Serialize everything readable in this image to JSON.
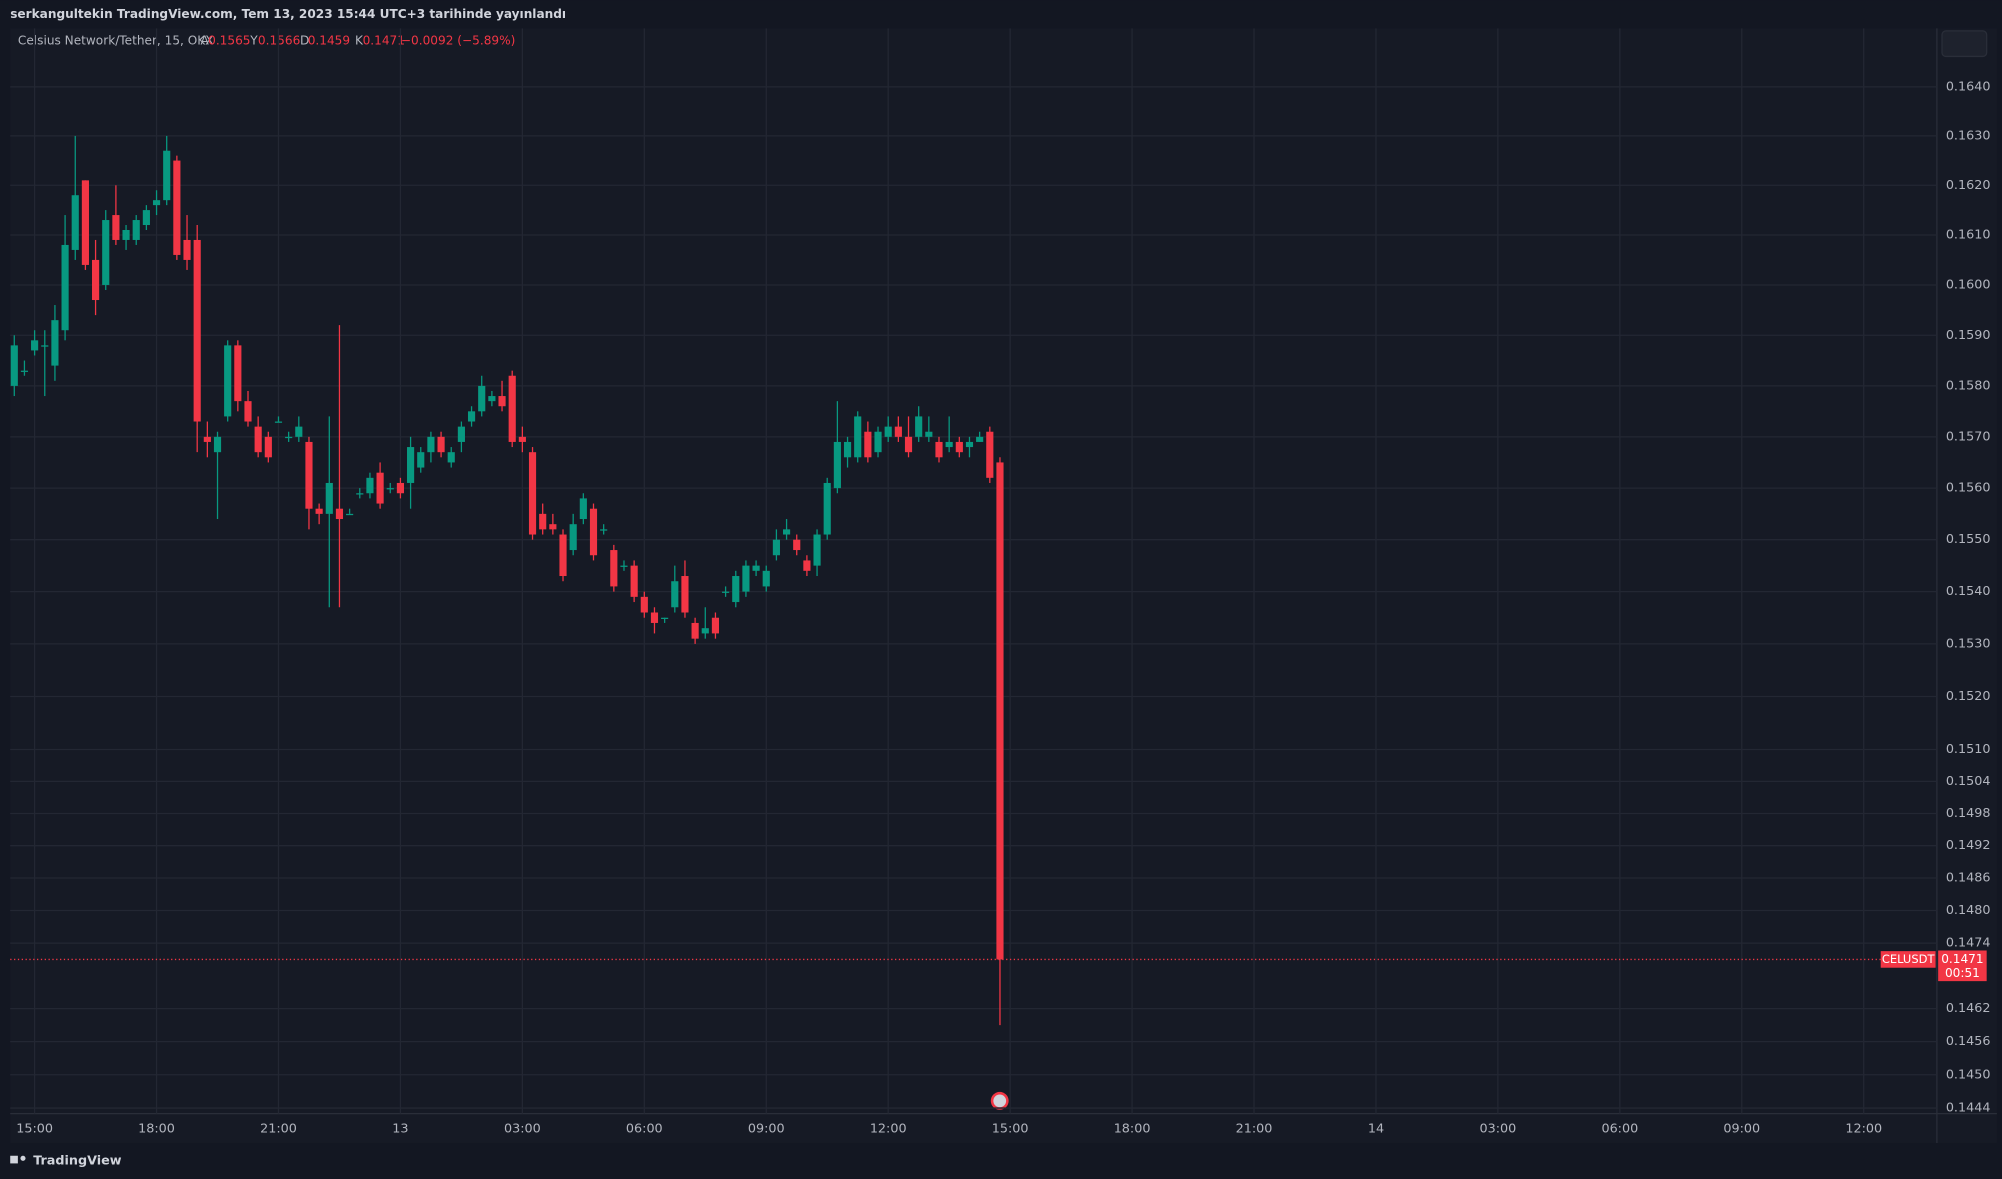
{
  "header": "serkangultekin TradingView.com, Tem 13, 2023 15:44 UTC+3 tarihinde yayınlandı",
  "footer": "TradingView",
  "chart_data": {
    "type": "candlestick",
    "title": "Celsius Network/Tether, 15, OKX",
    "ohlc_labels": [
      "A",
      "Y",
      "D",
      "K"
    ],
    "change_label": "−0.0092 (−5.89%)",
    "symbol": "CELUSDT",
    "countdown": "00:51",
    "up_color": "#089981",
    "down_color": "#f23645",
    "log_scale": true,
    "grid": true,
    "xlim": [
      14.4,
      61.8
    ],
    "xticks": [
      {
        "value": 15,
        "label": "15:00"
      },
      {
        "value": 18,
        "label": "18:00"
      },
      {
        "value": 21,
        "label": "21:00"
      },
      {
        "value": 24,
        "label": "13"
      },
      {
        "value": 27,
        "label": "03:00"
      },
      {
        "value": 30,
        "label": "06:00"
      },
      {
        "value": 33,
        "label": "09:00"
      },
      {
        "value": 36,
        "label": "12:00"
      },
      {
        "value": 39,
        "label": "15:00"
      },
      {
        "value": 42,
        "label": "18:00"
      },
      {
        "value": 45,
        "label": "21:00"
      },
      {
        "value": 48,
        "label": "14"
      },
      {
        "value": 51,
        "label": "03:00"
      },
      {
        "value": 54,
        "label": "06:00"
      },
      {
        "value": 57,
        "label": "09:00"
      },
      {
        "value": 60,
        "label": "12:00"
      }
    ],
    "ylim": [
      0.1443,
      0.1652
    ],
    "yticks": [
      {
        "value": 0.164,
        "label": "0.1640"
      },
      {
        "value": 0.163,
        "label": "0.1630"
      },
      {
        "value": 0.162,
        "label": "0.1620"
      },
      {
        "value": 0.161,
        "label": "0.1610"
      },
      {
        "value": 0.16,
        "label": "0.1600"
      },
      {
        "value": 0.159,
        "label": "0.1590"
      },
      {
        "value": 0.158,
        "label": "0.1580"
      },
      {
        "value": 0.157,
        "label": "0.1570"
      },
      {
        "value": 0.156,
        "label": "0.1560"
      },
      {
        "value": 0.155,
        "label": "0.1550"
      },
      {
        "value": 0.154,
        "label": "0.1540"
      },
      {
        "value": 0.153,
        "label": "0.1530"
      },
      {
        "value": 0.152,
        "label": "0.1520"
      },
      {
        "value": 0.151,
        "label": "0.1510"
      },
      0.1504,
      0.1498,
      0.1492,
      0.1486,
      {
        "value": 0.148,
        "label": "0.1480"
      },
      0.1474,
      0.1462,
      0.1456,
      {
        "value": 0.145,
        "label": "0.1450"
      },
      0.1444
    ],
    "x": [
      14.5,
      14.75,
      15,
      15.25,
      15.5,
      15.75,
      16,
      16.25,
      16.5,
      16.75,
      17,
      17.25,
      17.5,
      17.75,
      18,
      18.25,
      18.5,
      18.75,
      19,
      19.25,
      19.5,
      19.75,
      20,
      20.25,
      20.5,
      20.75,
      21,
      21.25,
      21.5,
      21.75,
      22,
      22.25,
      22.5,
      22.75,
      23,
      23.25,
      23.5,
      23.75,
      24,
      24.25,
      24.5,
      24.75,
      25,
      25.25,
      25.5,
      25.75,
      26,
      26.25,
      26.5,
      26.75,
      27,
      27.25,
      27.5,
      27.75,
      28,
      28.25,
      28.5,
      28.75,
      29,
      29.25,
      29.5,
      29.75,
      30,
      30.25,
      30.5,
      30.75,
      31,
      31.25,
      31.5,
      31.75,
      32,
      32.25,
      32.5,
      32.75,
      33,
      33.25,
      33.5,
      33.75,
      34,
      34.25,
      34.5,
      34.75,
      35,
      35.25,
      35.5,
      35.75,
      36,
      36.25,
      36.5,
      36.75,
      37,
      37.25,
      37.5,
      37.75,
      38,
      38.25,
      38.5,
      38.75
    ],
    "open": [
      0.158,
      0.1583,
      0.1587,
      0.1588,
      0.1584,
      0.1591,
      0.1607,
      0.1621,
      0.1605,
      0.16,
      0.1614,
      0.1609,
      0.1609,
      0.1612,
      0.1616,
      0.1617,
      0.1625,
      0.1609,
      0.1609,
      0.157,
      0.1567,
      0.1574,
      0.1588,
      0.1577,
      0.1572,
      0.157,
      0.1573,
      0.157,
      0.157,
      0.1569,
      0.1556,
      0.1555,
      0.1556,
      0.1555,
      0.1559,
      0.1559,
      0.1563,
      0.156,
      0.1561,
      0.1561,
      0.1564,
      0.1567,
      0.157,
      0.1565,
      0.1569,
      0.1573,
      0.1575,
      0.1577,
      0.1578,
      0.1582,
      0.157,
      0.1567,
      0.1555,
      0.1553,
      0.1551,
      0.1548,
      0.1554,
      0.1556,
      0.1552,
      0.1548,
      0.1545,
      0.1545,
      0.1539,
      0.1536,
      0.1535,
      0.1537,
      0.1543,
      0.1534,
      0.1532,
      0.1535,
      0.154,
      0.1538,
      0.154,
      0.1544,
      0.1541,
      0.1547,
      0.1551,
      0.155,
      0.1546,
      0.1545,
      0.1551,
      0.156,
      0.1566,
      0.1566,
      0.1571,
      0.1567,
      0.157,
      0.1572,
      0.157,
      0.157,
      0.157,
      0.1569,
      0.1568,
      0.1569,
      0.1568,
      0.1569,
      0.1571,
      0.1565
    ],
    "high": [
      0.159,
      0.1585,
      0.1591,
      0.1591,
      0.1596,
      0.1614,
      0.163,
      0.1621,
      0.1609,
      0.1615,
      0.162,
      0.1612,
      0.1614,
      0.1616,
      0.1619,
      0.163,
      0.1626,
      0.1614,
      0.1612,
      0.1573,
      0.1571,
      0.1589,
      0.1589,
      0.1579,
      0.1574,
      0.1571,
      0.1574,
      0.1571,
      0.1574,
      0.157,
      0.1557,
      0.1574,
      0.1592,
      0.1556,
      0.156,
      0.1563,
      0.1565,
      0.1561,
      0.1562,
      0.157,
      0.1568,
      0.1571,
      0.1571,
      0.1568,
      0.1573,
      0.1576,
      0.1582,
      0.1579,
      0.1581,
      0.1583,
      0.1572,
      0.1568,
      0.1557,
      0.1555,
      0.1552,
      0.1555,
      0.1559,
      0.1557,
      0.1553,
      0.1549,
      0.1546,
      0.1546,
      0.154,
      0.1537,
      0.1535,
      0.1545,
      0.1546,
      0.1535,
      0.1537,
      0.1536,
      0.1541,
      0.1544,
      0.1546,
      0.1546,
      0.1545,
      0.1552,
      0.1554,
      0.1551,
      0.1547,
      0.1552,
      0.1562,
      0.1577,
      0.157,
      0.1575,
      0.1573,
      0.1572,
      0.1574,
      0.1574,
      0.1574,
      0.1576,
      0.1574,
      0.157,
      0.1574,
      0.157,
      0.157,
      0.1571,
      0.1572,
      0.1566
    ],
    "low": [
      0.1578,
      0.1582,
      0.1586,
      0.1578,
      0.1581,
      0.1589,
      0.1605,
      0.1603,
      0.1594,
      0.1599,
      0.1608,
      0.1607,
      0.1608,
      0.1611,
      0.1614,
      0.1616,
      0.1605,
      0.1603,
      0.1567,
      0.1566,
      0.1554,
      0.1573,
      0.1575,
      0.1572,
      0.1566,
      0.1565,
      0.1573,
      0.1569,
      0.1569,
      0.1552,
      0.1553,
      0.1537,
      0.1537,
      0.1555,
      0.1558,
      0.1558,
      0.1556,
      0.1559,
      0.1558,
      0.1556,
      0.1563,
      0.1565,
      0.1566,
      0.1564,
      0.1567,
      0.1572,
      0.1574,
      0.1576,
      0.1575,
      0.1568,
      0.1567,
      0.155,
      0.1551,
      0.1551,
      0.1542,
      0.1547,
      0.1553,
      0.1546,
      0.1551,
      0.154,
      0.1544,
      0.1538,
      0.1535,
      0.1532,
      0.1534,
      0.1536,
      0.1535,
      0.153,
      0.1531,
      0.1531,
      0.1539,
      0.1537,
      0.1539,
      0.1543,
      0.154,
      0.1546,
      0.155,
      0.1547,
      0.1543,
      0.1543,
      0.155,
      0.1559,
      0.1564,
      0.1565,
      0.1565,
      0.1566,
      0.1569,
      0.1569,
      0.1566,
      0.1569,
      0.1569,
      0.1565,
      0.1567,
      0.1566,
      0.1566,
      0.1569,
      0.1561,
      0.1459
    ],
    "close": [
      0.1588,
      0.1583,
      0.1589,
      0.1588,
      0.1593,
      0.1608,
      0.1618,
      0.1604,
      0.1597,
      0.1613,
      0.1609,
      0.1611,
      0.1613,
      0.1615,
      0.1617,
      0.1627,
      0.1606,
      0.1605,
      0.1573,
      0.1569,
      0.157,
      0.1588,
      0.1577,
      0.1573,
      0.1567,
      0.1566,
      0.1573,
      0.157,
      0.1572,
      0.1556,
      0.1555,
      0.1561,
      0.1554,
      0.1555,
      0.1559,
      0.1562,
      0.1557,
      0.156,
      0.1559,
      0.1568,
      0.1567,
      0.157,
      0.1567,
      0.1567,
      0.1572,
      0.1575,
      0.158,
      0.1578,
      0.1576,
      0.1569,
      0.1569,
      0.1551,
      0.1552,
      0.1552,
      0.1543,
      0.1553,
      0.1558,
      0.1547,
      0.1552,
      0.1541,
      0.1545,
      0.1539,
      0.1536,
      0.1534,
      0.1535,
      0.1542,
      0.1536,
      0.1531,
      0.1533,
      0.1532,
      0.154,
      0.1543,
      0.1545,
      0.1545,
      0.1544,
      0.155,
      0.1552,
      0.1548,
      0.1544,
      0.1551,
      0.1561,
      0.1569,
      0.1569,
      0.1574,
      0.1566,
      0.1571,
      0.1572,
      0.157,
      0.1567,
      0.1574,
      0.1571,
      0.1566,
      0.1569,
      0.1567,
      0.1569,
      0.157,
      0.1562,
      0.1471
    ]
  }
}
